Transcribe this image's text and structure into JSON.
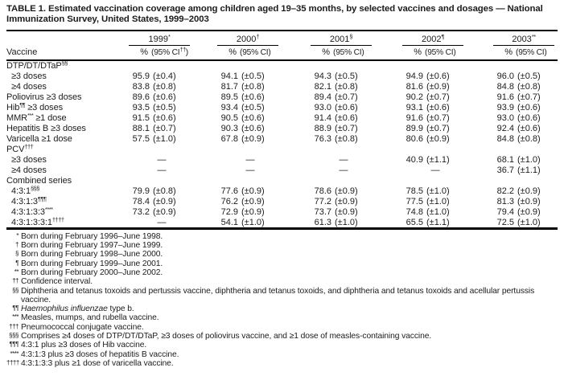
{
  "title": "TABLE 1. Estimated vaccination coverage among children aged 19–35 months, by selected vaccines and dosages — National Immunization Survey, United States, 1999–2003",
  "dash": "—",
  "header": {
    "vaccine_label": "Vaccine",
    "pct_label": "%",
    "years": [
      {
        "label": "1999",
        "sup": "*",
        "ci_pre": "(95% CI",
        "ci_sup": "††",
        "ci_post": ")"
      },
      {
        "label": "2000",
        "sup": "†",
        "ci_pre": "(95% CI",
        "ci_sup": "",
        "ci_post": ")"
      },
      {
        "label": "2001",
        "sup": "§",
        "ci_pre": "(95% CI",
        "ci_sup": "",
        "ci_post": ")"
      },
      {
        "label": "2002",
        "sup": "¶",
        "ci_pre": "(95% CI",
        "ci_sup": "",
        "ci_post": ")"
      },
      {
        "label": "2003",
        "sup": "**",
        "ci_pre": "(95% CI",
        "ci_sup": "",
        "ci_post": ")"
      }
    ]
  },
  "rows": [
    {
      "type": "section",
      "pre": "DTP/DT/DTaP",
      "sup": "§§",
      "post": ""
    },
    {
      "type": "sub",
      "pre": "≥3 doses",
      "values": [
        {
          "pct": "95.9",
          "ci": "(±0.4)"
        },
        {
          "pct": "94.1",
          "ci": "(±0.5)"
        },
        {
          "pct": "94.3",
          "ci": "(±0.5)"
        },
        {
          "pct": "94.9",
          "ci": "(±0.6)"
        },
        {
          "pct": "96.0",
          "ci": "(±0.5)"
        }
      ]
    },
    {
      "type": "sub",
      "pre": "≥4 doses",
      "values": [
        {
          "pct": "83.8",
          "ci": "(±0.8)"
        },
        {
          "pct": "81.7",
          "ci": "(±0.8)"
        },
        {
          "pct": "82.1",
          "ci": "(±0.8)"
        },
        {
          "pct": "81.6",
          "ci": "(±0.9)"
        },
        {
          "pct": "84.8",
          "ci": "(±0.8)"
        }
      ]
    },
    {
      "type": "plain",
      "pre": "Poliovirus ≥3 doses",
      "values": [
        {
          "pct": "89.6",
          "ci": "(±0.6)"
        },
        {
          "pct": "89.5",
          "ci": "(±0.6)"
        },
        {
          "pct": "89.4",
          "ci": "(±0.7)"
        },
        {
          "pct": "90.2",
          "ci": "(±0.7)"
        },
        {
          "pct": "91.6",
          "ci": "(±0.7)"
        }
      ]
    },
    {
      "type": "plain",
      "pre": "Hib",
      "sup": "¶¶",
      "post": " ≥3 doses",
      "values": [
        {
          "pct": "93.5",
          "ci": "(±0.5)"
        },
        {
          "pct": "93.4",
          "ci": "(±0.5)"
        },
        {
          "pct": "93.0",
          "ci": "(±0.6)"
        },
        {
          "pct": "93.1",
          "ci": "(±0.6)"
        },
        {
          "pct": "93.9",
          "ci": "(±0.6)"
        }
      ]
    },
    {
      "type": "plain",
      "pre": "MMR",
      "sup": "***",
      "post": " ≥1 dose",
      "values": [
        {
          "pct": "91.5",
          "ci": "(±0.6)"
        },
        {
          "pct": "90.5",
          "ci": "(±0.6)"
        },
        {
          "pct": "91.4",
          "ci": "(±0.6)"
        },
        {
          "pct": "91.6",
          "ci": "(±0.7)"
        },
        {
          "pct": "93.0",
          "ci": "(±0.6)"
        }
      ]
    },
    {
      "type": "plain",
      "pre": "Hepatitis B ≥3 doses",
      "values": [
        {
          "pct": "88.1",
          "ci": "(±0.7)"
        },
        {
          "pct": "90.3",
          "ci": "(±0.6)"
        },
        {
          "pct": "88.9",
          "ci": "(±0.7)"
        },
        {
          "pct": "89.9",
          "ci": "(±0.7)"
        },
        {
          "pct": "92.4",
          "ci": "(±0.6)"
        }
      ]
    },
    {
      "type": "plain",
      "pre": "Varicella ≥1 dose",
      "values": [
        {
          "pct": "57.5",
          "ci": "(±1.0)"
        },
        {
          "pct": "67.8",
          "ci": "(±0.9)"
        },
        {
          "pct": "76.3",
          "ci": "(±0.8)"
        },
        {
          "pct": "80.6",
          "ci": "(±0.9)"
        },
        {
          "pct": "84.8",
          "ci": "(±0.8)"
        }
      ]
    },
    {
      "type": "section",
      "pre": "PCV",
      "sup": "†††",
      "post": ""
    },
    {
      "type": "sub",
      "pre": "≥3 doses",
      "values": [
        null,
        null,
        null,
        {
          "pct": "40.9",
          "ci": "(±1.1)"
        },
        {
          "pct": "68.1",
          "ci": "(±1.0)"
        }
      ]
    },
    {
      "type": "sub",
      "pre": "≥4 doses",
      "values": [
        null,
        null,
        null,
        null,
        {
          "pct": "36.7",
          "ci": "(±1.1)"
        }
      ]
    },
    {
      "type": "section",
      "pre": "Combined series",
      "post": ""
    },
    {
      "type": "sub",
      "pre": "4:3:1",
      "sup": "§§§",
      "values": [
        {
          "pct": "79.9",
          "ci": "(±0.8)"
        },
        {
          "pct": "77.6",
          "ci": "(±0.9)"
        },
        {
          "pct": "78.6",
          "ci": "(±0.9)"
        },
        {
          "pct": "78.5",
          "ci": "(±1.0)"
        },
        {
          "pct": "82.2",
          "ci": "(±0.9)"
        }
      ]
    },
    {
      "type": "sub",
      "pre": "4:3:1:3",
      "sup": "¶¶¶",
      "values": [
        {
          "pct": "78.4",
          "ci": "(±0.9)"
        },
        {
          "pct": "76.2",
          "ci": "(±0.9)"
        },
        {
          "pct": "77.2",
          "ci": "(±0.9)"
        },
        {
          "pct": "77.5",
          "ci": "(±1.0)"
        },
        {
          "pct": "81.3",
          "ci": "(±0.9)"
        }
      ]
    },
    {
      "type": "sub",
      "pre": "4:3:1:3:3",
      "sup": "****",
      "values": [
        {
          "pct": "73.2",
          "ci": "(±0.9)"
        },
        {
          "pct": "72.9",
          "ci": "(±0.9)"
        },
        {
          "pct": "73.7",
          "ci": "(±0.9)"
        },
        {
          "pct": "74.8",
          "ci": "(±1.0)"
        },
        {
          "pct": "79.4",
          "ci": "(±0.9)"
        }
      ]
    },
    {
      "type": "sub",
      "pre": "4:3:1:3:3:1",
      "sup": "††††",
      "values": [
        null,
        {
          "pct": "54.1",
          "ci": "(±1.0)"
        },
        {
          "pct": "61.3",
          "ci": "(±1.0)"
        },
        {
          "pct": "65.5",
          "ci": "(±1.1)"
        },
        {
          "pct": "72.5",
          "ci": "(±1.0)"
        }
      ]
    }
  ],
  "footnotes": [
    {
      "marker": "*",
      "text": "Born during February 1996–June 1998."
    },
    {
      "marker": "†",
      "text": "Born during February 1997–June 1999."
    },
    {
      "marker": "§",
      "text": "Born during February 1998–June 2000."
    },
    {
      "marker": "¶",
      "text": "Born during February 1999–June 2001."
    },
    {
      "marker": "**",
      "text": "Born during February 2000–June 2002."
    },
    {
      "marker": "††",
      "text": "Confidence interval."
    },
    {
      "marker": "§§",
      "text": "Diphtheria and tetanus toxoids and pertussis vaccine, diphtheria and tetanus toxoids, and diphtheria and tetanus toxoids and acellular pertussis vaccine."
    },
    {
      "marker": "¶¶",
      "italic": "Haemophilus influenzae",
      "text": " type b."
    },
    {
      "marker": "***",
      "text": "Measles, mumps, and rubella vaccine."
    },
    {
      "marker": "†††",
      "text": "Pneumococcal conjugate vaccine."
    },
    {
      "marker": "§§§",
      "text": "Comprises ≥4 doses of DTP/DT/DTaP, ≥3 doses of poliovirus vaccine, and ≥1 dose of measles-containing vaccine."
    },
    {
      "marker": "¶¶¶",
      "text": "4:3:1 plus ≥3 doses of Hib vaccine."
    },
    {
      "marker": "****",
      "text": "4:3:1:3 plus ≥3 doses of hepatitis B vaccine."
    },
    {
      "marker": "††††",
      "text": "4:3:1:3:3 plus ≥1 dose of varicella vaccine."
    }
  ]
}
